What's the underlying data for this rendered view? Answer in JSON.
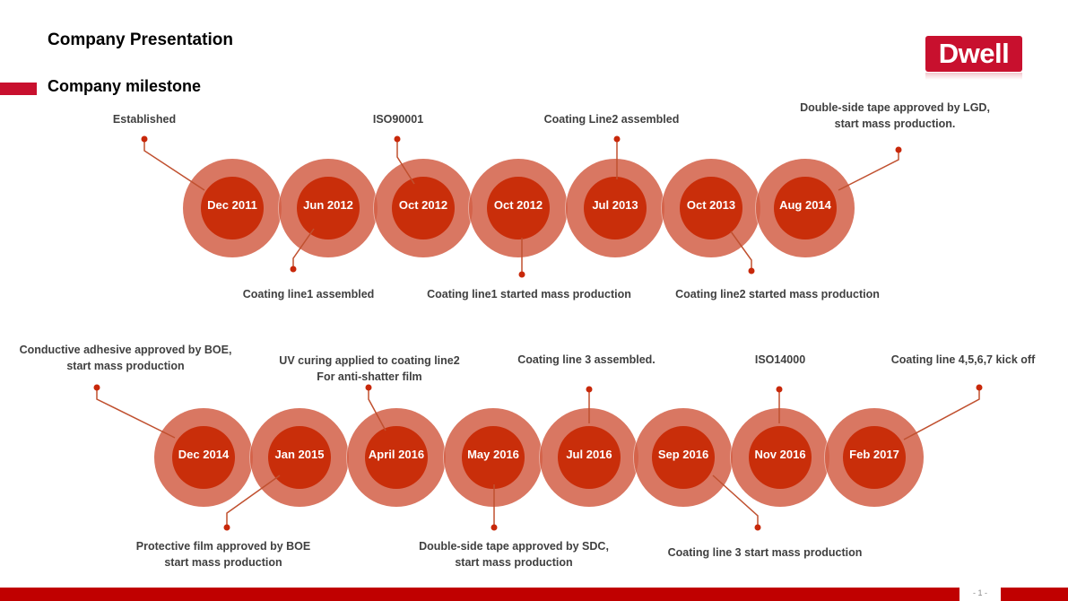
{
  "header": {
    "title": "Company Presentation",
    "subtitle": "Company milestone",
    "logo_text": "Dwell"
  },
  "colors": {
    "brand_red": "#c8102e",
    "circle_outer": "#d25f46",
    "circle_inner": "#c92e0a"
  },
  "timeline_top": {
    "dates": [
      "Dec 2011",
      "Jun 2012",
      "Oct 2012",
      "Oct 2012",
      "Jul 2013",
      "Oct 2013",
      "Aug 2014"
    ],
    "events_above": [
      {
        "text": "Established"
      },
      {
        "text": "ISO90001"
      },
      {
        "text": "Coating Line2 assembled"
      },
      {
        "line1": "Double-side tape approved by LGD,",
        "line2": "start mass production."
      }
    ],
    "events_below": [
      {
        "text": "Coating line1 assembled"
      },
      {
        "text": "Coating line1 started mass production"
      },
      {
        "text": "Coating line2 started mass production"
      }
    ]
  },
  "timeline_bottom": {
    "dates": [
      "Dec 2014",
      "Jan 2015",
      "April 2016",
      "May 2016",
      "Jul 2016",
      "Sep 2016",
      "Nov 2016",
      "Feb 2017"
    ],
    "events_above": [
      {
        "line1": "Conductive adhesive approved by BOE,",
        "line2": "start mass production"
      },
      {
        "line1": "UV curing applied to coating line2",
        "line2": "For anti-shatter film"
      },
      {
        "text": "Coating line 3 assembled."
      },
      {
        "text": "ISO14000"
      },
      {
        "text": "Coating line 4,5,6,7 kick off"
      }
    ],
    "events_below": [
      {
        "line1": "Protective film approved by BOE",
        "line2": "start mass production"
      },
      {
        "line1": "Double-side tape approved by SDC,",
        "line2": "start mass production"
      },
      {
        "text": "Coating line 3 start mass production"
      }
    ]
  },
  "footer": {
    "page": "- 1 -"
  }
}
